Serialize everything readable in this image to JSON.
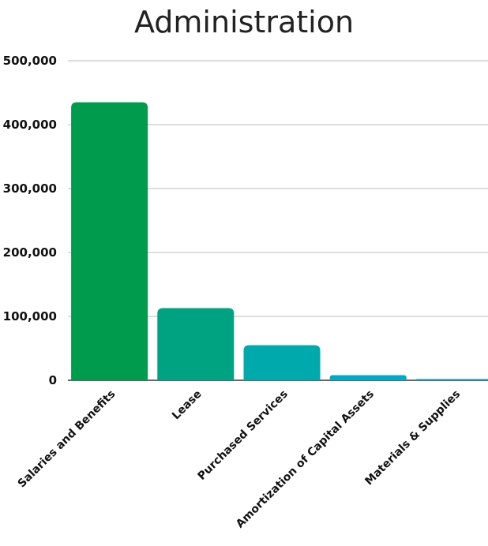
{
  "chart_data": {
    "type": "bar",
    "title": "Administration",
    "xlabel": "",
    "ylabel": "",
    "categories": [
      "Salaries and Benefits",
      "Lease",
      "Purchased Services",
      "Amortization of Capital Assets",
      "Materials & Supplies"
    ],
    "values": [
      435000,
      113000,
      55000,
      8000,
      2000
    ],
    "ylim": [
      0,
      500000
    ],
    "yticks": [
      0,
      100000,
      200000,
      300000,
      400000,
      500000
    ],
    "ytick_labels": [
      "0",
      "100,000",
      "200,000",
      "300,000",
      "400,000",
      "500,000"
    ],
    "bar_colors": [
      "#009b4c",
      "#00a381",
      "#00aaac",
      "#00a9c9",
      "#07a5dc"
    ],
    "grid": true,
    "legend": "none"
  }
}
